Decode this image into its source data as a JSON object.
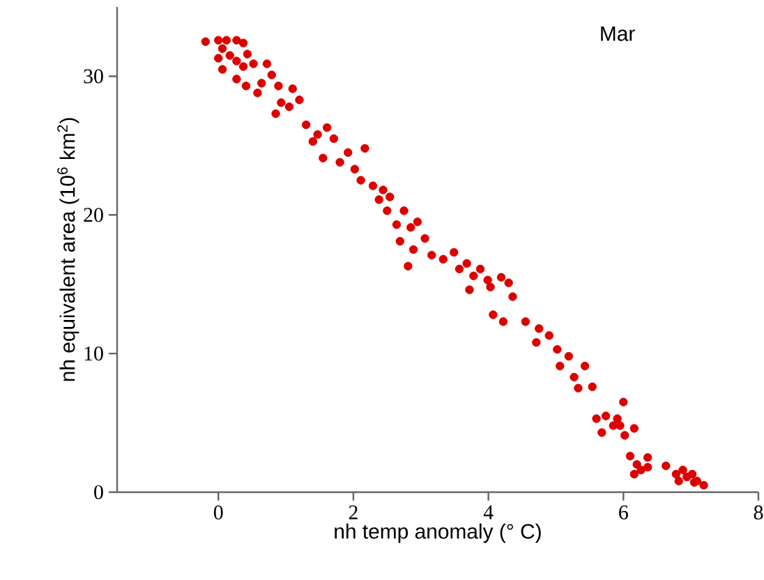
{
  "chart_data": {
    "type": "scatter",
    "xlabel": "nh temp anomaly (° C)",
    "ylabel": "nh equivalent area (10$^{6}$ km$^{2}$)",
    "annotations": [
      "Mar"
    ],
    "xlim": [
      -1.5,
      8
    ],
    "ylim": [
      0,
      35
    ],
    "xticks": [
      0,
      2,
      4,
      6,
      8
    ],
    "yticks": [
      0,
      10,
      20,
      30
    ],
    "marker": "circle",
    "series": [
      {
        "color": "#dd0000",
        "x": [
          -0.19,
          0,
          0.12,
          0.27,
          0.37,
          0.06,
          0.17,
          0,
          0.27,
          0.43,
          0.06,
          0.37,
          0.52,
          0.27,
          0.41,
          0.72,
          0.79,
          0.64,
          0.89,
          0.58,
          0.93,
          1.1,
          0.85,
          1.05,
          1.2,
          1.3,
          1.47,
          1.61,
          1.4,
          1.71,
          1.55,
          1.8,
          2.02,
          1.92,
          2.17,
          2.11,
          2.29,
          2.44,
          2.38,
          2.54,
          2.5,
          2.64,
          2.75,
          2.85,
          2.95,
          2.69,
          2.89,
          3.06,
          2.81,
          3.16,
          3.33,
          3.49,
          3.57,
          3.68,
          3.78,
          3.88,
          3.99,
          3.72,
          4.03,
          4.19,
          4.3,
          4.36,
          4.07,
          4.22,
          4.55,
          4.75,
          4.71,
          4.9,
          5.02,
          5.19,
          5.06,
          5.27,
          5.43,
          5.33,
          5.54,
          5.6,
          5.74,
          5.85,
          5.68,
          5.95,
          6.0,
          5.91,
          6.16,
          6.02,
          6.1,
          6.2,
          6.26,
          6.16,
          6.36,
          6.36,
          6.63,
          6.78,
          6.88,
          6.94,
          6.82,
          7.02,
          7.09,
          7.19,
          7.05
        ],
        "values": [
          32.5,
          32.6,
          32.6,
          32.6,
          32.4,
          32,
          31.5,
          31.3,
          31.1,
          31.6,
          30.5,
          30.7,
          30.9,
          29.8,
          29.3,
          30.9,
          30.1,
          29.5,
          29.3,
          28.8,
          28.1,
          29.1,
          27.3,
          27.8,
          28.3,
          26.5,
          25.8,
          26.3,
          25.3,
          25.5,
          24.1,
          23.8,
          23.3,
          24.5,
          24.8,
          22.5,
          22.1,
          21.8,
          21.1,
          21.3,
          20.3,
          19.3,
          20.3,
          19.1,
          19.5,
          18.1,
          17.5,
          18.3,
          16.3,
          17.1,
          16.8,
          17.3,
          16.1,
          16.5,
          15.6,
          16.1,
          15.3,
          14.6,
          14.8,
          15.5,
          15.1,
          14.1,
          12.8,
          12.3,
          12.3,
          11.8,
          10.8,
          11.3,
          10.3,
          9.8,
          9.1,
          8.3,
          9.1,
          7.5,
          7.6,
          5.3,
          5.5,
          4.8,
          4.3,
          4.8,
          6.5,
          5.3,
          4.6,
          4.1,
          2.6,
          2.0,
          1.6,
          1.3,
          1.8,
          2.5,
          1.9,
          1.3,
          1.6,
          1.1,
          0.8,
          1.3,
          0.8,
          0.5,
          0.7
        ]
      }
    ]
  }
}
